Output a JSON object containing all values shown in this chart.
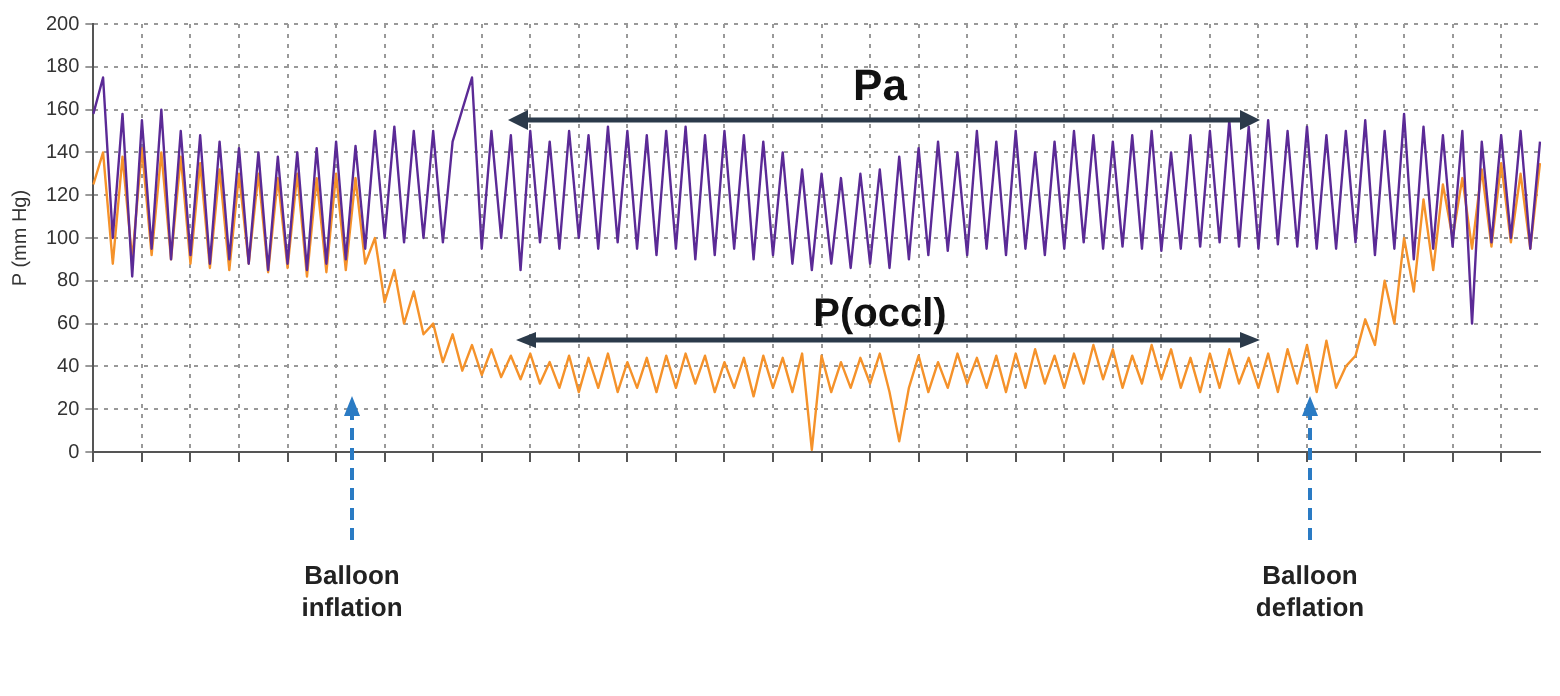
{
  "chart_data": {
    "type": "line",
    "ylabel": "P (mm Hg)",
    "ylim": [
      0,
      200
    ],
    "yticks": [
      0,
      20,
      40,
      60,
      80,
      100,
      120,
      140,
      160,
      180,
      200
    ],
    "grid": true,
    "legend": false,
    "marker": "none",
    "line_style": "solid",
    "tick_labels": "y",
    "categories": [
      null,
      null,
      null,
      null,
      null,
      null,
      null,
      null,
      null,
      null,
      null,
      null,
      null,
      null,
      null,
      null,
      null,
      null,
      null,
      null,
      null,
      null,
      null,
      null,
      null,
      null,
      null,
      null,
      null,
      null,
      null,
      null,
      null,
      null,
      null,
      null,
      null,
      null,
      null,
      null,
      null,
      null,
      null,
      null,
      null,
      null,
      null,
      null,
      null,
      null,
      null,
      null,
      null,
      null,
      null,
      null,
      null,
      null,
      null,
      null,
      null,
      null,
      null,
      null,
      null,
      null,
      null,
      null,
      null,
      null,
      null,
      null,
      null,
      null,
      null,
      null,
      null,
      null,
      null,
      null,
      null,
      null,
      null,
      null,
      null,
      null,
      null,
      null,
      null,
      null,
      null,
      null,
      null,
      null,
      null,
      null,
      null,
      null,
      null,
      null,
      null,
      null,
      null,
      null,
      null,
      null,
      null,
      null,
      null,
      null,
      null,
      null,
      null,
      null,
      null,
      null,
      null,
      null,
      null,
      null,
      null,
      null,
      null,
      null,
      null,
      null,
      null,
      null,
      null,
      null,
      null,
      null,
      null,
      null,
      null,
      null,
      null,
      null,
      null,
      null,
      null,
      null,
      null,
      null,
      null,
      null,
      null,
      null,
      null,
      null
    ],
    "series": [
      {
        "name": "Pa",
        "color": "#5b2a96",
        "values": [
          158,
          175,
          100,
          158,
          82,
          155,
          95,
          160,
          90,
          150,
          92,
          148,
          88,
          145,
          90,
          142,
          88,
          140,
          85,
          138,
          88,
          140,
          85,
          142,
          88,
          145,
          90,
          143,
          95,
          150,
          100,
          152,
          98,
          150,
          100,
          150,
          98,
          145,
          160,
          175,
          95,
          150,
          100,
          148,
          85,
          150,
          98,
          145,
          95,
          150,
          100,
          148,
          95,
          152,
          98,
          150,
          95,
          148,
          92,
          150,
          95,
          152,
          90,
          148,
          92,
          150,
          95,
          148,
          90,
          145,
          92,
          140,
          88,
          132,
          85,
          130,
          88,
          128,
          86,
          130,
          88,
          132,
          86,
          138,
          90,
          142,
          92,
          145,
          94,
          140,
          92,
          150,
          95,
          145,
          92,
          150,
          95,
          140,
          92,
          145,
          95,
          150,
          98,
          148,
          95,
          145,
          96,
          148,
          95,
          150,
          94,
          140,
          95,
          148,
          96,
          150,
          98,
          155,
          96,
          152,
          95,
          155,
          97,
          150,
          96,
          152,
          95,
          148,
          95,
          150,
          98,
          155,
          92,
          150,
          95,
          158,
          90,
          152,
          95,
          148,
          96,
          150,
          60,
          145,
          98,
          148,
          100,
          150,
          95,
          145
        ]
      },
      {
        "name": "P(occl)",
        "color": "#f5922a",
        "values": [
          125,
          140,
          88,
          138,
          90,
          142,
          92,
          140,
          90,
          138,
          88,
          135,
          86,
          132,
          85,
          130,
          88,
          130,
          84,
          128,
          86,
          130,
          82,
          128,
          84,
          130,
          85,
          128,
          88,
          100,
          70,
          85,
          60,
          75,
          55,
          60,
          42,
          55,
          38,
          50,
          36,
          48,
          35,
          45,
          34,
          46,
          32,
          42,
          30,
          45,
          28,
          44,
          30,
          46,
          28,
          42,
          30,
          44,
          28,
          45,
          30,
          46,
          32,
          45,
          28,
          42,
          30,
          44,
          26,
          45,
          30,
          44,
          28,
          46,
          1,
          45,
          28,
          42,
          30,
          44,
          32,
          46,
          28,
          5,
          30,
          45,
          28,
          42,
          30,
          46,
          32,
          44,
          30,
          45,
          28,
          46,
          30,
          48,
          32,
          45,
          30,
          46,
          32,
          50,
          34,
          48,
          30,
          45,
          32,
          50,
          34,
          48,
          30,
          44,
          28,
          46,
          30,
          48,
          32,
          44,
          30,
          46,
          28,
          48,
          32,
          50,
          28,
          52,
          30,
          40,
          45,
          62,
          50,
          80,
          60,
          100,
          75,
          118,
          85,
          125,
          100,
          128,
          95,
          132,
          96,
          135,
          98,
          130,
          95,
          135
        ]
      }
    ],
    "annotations": [
      "Balloon inflation",
      "Balloon deflation"
    ]
  }
}
